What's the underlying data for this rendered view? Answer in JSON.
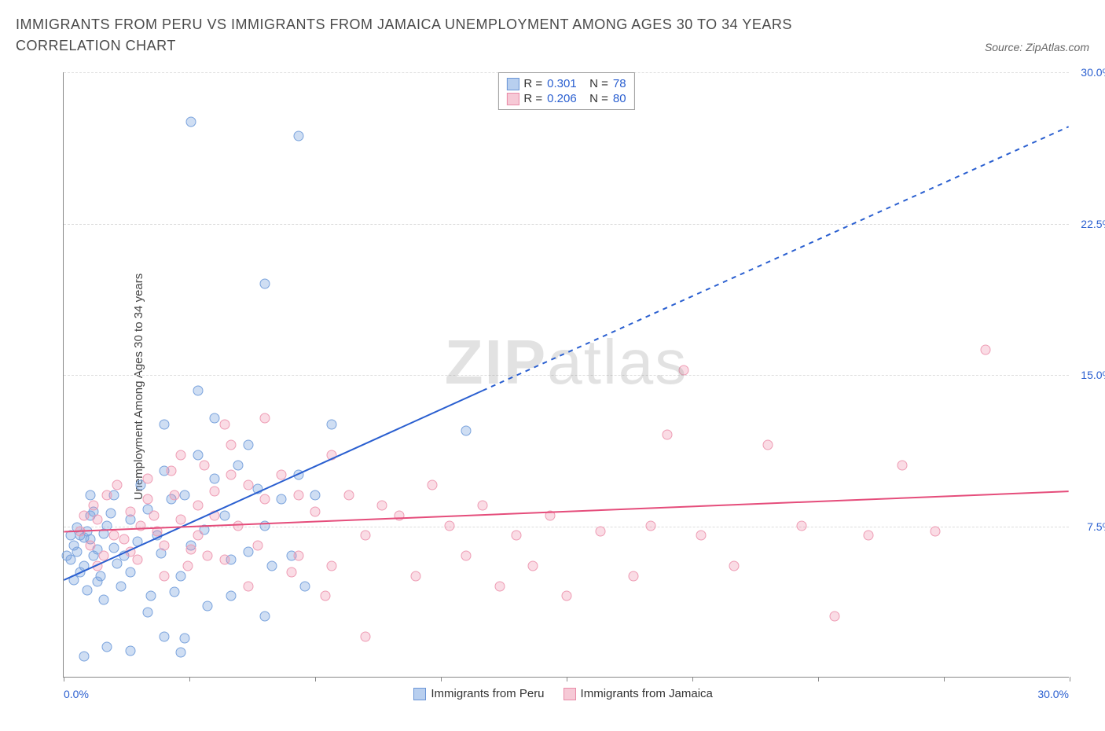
{
  "title": "IMMIGRANTS FROM PERU VS IMMIGRANTS FROM JAMAICA UNEMPLOYMENT AMONG AGES 30 TO 34 YEARS CORRELATION CHART",
  "source_label": "Source: ZipAtlas.com",
  "y_axis_label": "Unemployment Among Ages 30 to 34 years",
  "watermark_bold": "ZIP",
  "watermark_light": "atlas",
  "chart": {
    "type": "scatter",
    "xlim": [
      0,
      30
    ],
    "ylim": [
      0,
      30
    ],
    "x_ticks": [
      0,
      3.75,
      7.5,
      11.25,
      15,
      18.75,
      22.5,
      26.25,
      30
    ],
    "x_tick_labels": {
      "first": "0.0%",
      "last": "30.0%"
    },
    "y_grid": [
      7.5,
      15,
      22.5,
      30
    ],
    "y_grid_labels": [
      "7.5%",
      "15.0%",
      "22.5%",
      "30.0%"
    ],
    "grid_color": "#dddddd",
    "axis_color": "#888888",
    "background_color": "#ffffff",
    "axis_label_color": "#3a66c4",
    "marker_radius": 6.5,
    "series": [
      {
        "name": "Immigrants from Peru",
        "label": "Immigrants from Peru",
        "fill": "rgba(118,160,220,0.35)",
        "stroke": "#7aa3dd",
        "swatch_fill": "#b8cfef",
        "swatch_border": "#6b95d6",
        "R": "0.301",
        "N": "78",
        "trend": {
          "x1": 0,
          "y1": 4.8,
          "x2_solid": 12.5,
          "y2_solid": 14.2,
          "x2": 30,
          "y2": 27.3,
          "color": "#2a5fd0",
          "width": 2
        },
        "points": [
          [
            0.1,
            6.0
          ],
          [
            0.3,
            6.5
          ],
          [
            0.2,
            5.8
          ],
          [
            0.5,
            7.0
          ],
          [
            0.4,
            6.2
          ],
          [
            0.6,
            5.5
          ],
          [
            0.8,
            6.8
          ],
          [
            0.7,
            7.2
          ],
          [
            0.3,
            4.8
          ],
          [
            0.5,
            5.2
          ],
          [
            0.9,
            6.0
          ],
          [
            0.6,
            6.9
          ],
          [
            0.4,
            7.4
          ],
          [
            0.2,
            7.0
          ],
          [
            0.8,
            8.0
          ],
          [
            1.0,
            6.3
          ],
          [
            1.2,
            7.1
          ],
          [
            0.9,
            8.2
          ],
          [
            1.1,
            5.0
          ],
          [
            0.7,
            4.3
          ],
          [
            1.3,
            7.5
          ],
          [
            1.5,
            6.4
          ],
          [
            1.0,
            4.7
          ],
          [
            1.4,
            8.1
          ],
          [
            1.6,
            5.6
          ],
          [
            1.8,
            6.0
          ],
          [
            1.2,
            3.8
          ],
          [
            1.5,
            9.0
          ],
          [
            2.0,
            7.8
          ],
          [
            1.7,
            4.5
          ],
          [
            2.2,
            6.7
          ],
          [
            2.5,
            8.3
          ],
          [
            2.0,
            5.2
          ],
          [
            2.3,
            9.5
          ],
          [
            2.6,
            4.0
          ],
          [
            2.8,
            7.0
          ],
          [
            3.0,
            10.2
          ],
          [
            2.5,
            3.2
          ],
          [
            2.9,
            6.1
          ],
          [
            3.2,
            8.8
          ],
          [
            3.5,
            5.0
          ],
          [
            3.0,
            12.5
          ],
          [
            3.3,
            4.2
          ],
          [
            3.6,
            9.0
          ],
          [
            3.8,
            6.5
          ],
          [
            4.0,
            11.0
          ],
          [
            3.5,
            1.2
          ],
          [
            4.2,
            7.3
          ],
          [
            4.5,
            9.8
          ],
          [
            4.0,
            14.2
          ],
          [
            4.3,
            3.5
          ],
          [
            4.8,
            8.0
          ],
          [
            5.0,
            5.8
          ],
          [
            4.5,
            12.8
          ],
          [
            5.2,
            10.5
          ],
          [
            5.5,
            6.2
          ],
          [
            5.0,
            4.0
          ],
          [
            5.8,
            9.3
          ],
          [
            6.0,
            7.5
          ],
          [
            5.5,
            11.5
          ],
          [
            6.2,
            5.5
          ],
          [
            6.5,
            8.8
          ],
          [
            6.0,
            3.0
          ],
          [
            7.0,
            10.0
          ],
          [
            6.8,
            6.0
          ],
          [
            7.5,
            9.0
          ],
          [
            7.2,
            4.5
          ],
          [
            8.0,
            12.5
          ],
          [
            3.8,
            27.5
          ],
          [
            6.0,
            19.5
          ],
          [
            7.0,
            26.8
          ],
          [
            12.0,
            12.2
          ],
          [
            0.6,
            1.0
          ],
          [
            1.3,
            1.5
          ],
          [
            2.0,
            1.3
          ],
          [
            3.0,
            2.0
          ],
          [
            3.6,
            1.9
          ],
          [
            0.8,
            9.0
          ]
        ]
      },
      {
        "name": "Immigrants from Jamaica",
        "label": "Immigrants from Jamaica",
        "fill": "rgba(238,140,170,0.30)",
        "stroke": "#ee9cb4",
        "swatch_fill": "#f6c9d6",
        "swatch_border": "#e98ba8",
        "R": "0.206",
        "N": "80",
        "trend": {
          "x1": 0,
          "y1": 7.2,
          "x2_solid": 30,
          "y2_solid": 9.2,
          "x2": 30,
          "y2": 9.2,
          "color": "#e54d7b",
          "width": 2
        },
        "points": [
          [
            0.5,
            7.2
          ],
          [
            0.8,
            6.5
          ],
          [
            1.0,
            7.8
          ],
          [
            0.6,
            8.0
          ],
          [
            1.2,
            6.0
          ],
          [
            0.9,
            8.5
          ],
          [
            1.5,
            7.0
          ],
          [
            1.3,
            9.0
          ],
          [
            1.8,
            6.8
          ],
          [
            1.0,
            5.5
          ],
          [
            2.0,
            8.2
          ],
          [
            1.6,
            9.5
          ],
          [
            2.3,
            7.5
          ],
          [
            2.0,
            6.2
          ],
          [
            2.5,
            8.8
          ],
          [
            2.2,
            5.8
          ],
          [
            2.8,
            7.2
          ],
          [
            2.5,
            9.8
          ],
          [
            3.0,
            6.5
          ],
          [
            2.7,
            8.0
          ],
          [
            3.2,
            10.2
          ],
          [
            3.0,
            5.0
          ],
          [
            3.5,
            7.8
          ],
          [
            3.3,
            9.0
          ],
          [
            3.8,
            6.3
          ],
          [
            3.5,
            11.0
          ],
          [
            4.0,
            8.5
          ],
          [
            3.7,
            5.5
          ],
          [
            4.2,
            10.5
          ],
          [
            4.0,
            7.0
          ],
          [
            4.5,
            9.2
          ],
          [
            4.3,
            6.0
          ],
          [
            4.8,
            12.5
          ],
          [
            4.5,
            8.0
          ],
          [
            5.0,
            10.0
          ],
          [
            4.8,
            5.8
          ],
          [
            5.2,
            7.5
          ],
          [
            5.5,
            9.5
          ],
          [
            5.0,
            11.5
          ],
          [
            5.8,
            6.5
          ],
          [
            6.0,
            8.8
          ],
          [
            5.5,
            4.5
          ],
          [
            6.5,
            10.0
          ],
          [
            6.0,
            12.8
          ],
          [
            7.0,
            9.0
          ],
          [
            6.8,
            5.2
          ],
          [
            7.5,
            8.2
          ],
          [
            7.0,
            6.0
          ],
          [
            8.0,
            11.0
          ],
          [
            7.8,
            4.0
          ],
          [
            8.5,
            9.0
          ],
          [
            8.0,
            5.5
          ],
          [
            9.0,
            7.0
          ],
          [
            9.5,
            8.5
          ],
          [
            9.0,
            2.0
          ],
          [
            10.0,
            8.0
          ],
          [
            10.5,
            5.0
          ],
          [
            11.0,
            9.5
          ],
          [
            11.5,
            7.5
          ],
          [
            12.0,
            6.0
          ],
          [
            12.5,
            8.5
          ],
          [
            13.0,
            4.5
          ],
          [
            13.5,
            7.0
          ],
          [
            14.0,
            5.5
          ],
          [
            14.5,
            8.0
          ],
          [
            15.0,
            4.0
          ],
          [
            16.0,
            7.2
          ],
          [
            17.0,
            5.0
          ],
          [
            17.5,
            7.5
          ],
          [
            18.0,
            12.0
          ],
          [
            19.0,
            7.0
          ],
          [
            20.0,
            5.5
          ],
          [
            21.0,
            11.5
          ],
          [
            22.0,
            7.5
          ],
          [
            23.0,
            3.0
          ],
          [
            24.0,
            7.0
          ],
          [
            25.0,
            10.5
          ],
          [
            26.0,
            7.2
          ],
          [
            27.5,
            16.2
          ],
          [
            18.5,
            15.2
          ]
        ]
      }
    ]
  },
  "legend_top_labels": {
    "R_prefix": "R =",
    "N_prefix": "N ="
  },
  "colors": {
    "stat_value": "#2a5fd0",
    "stat_label": "#333333"
  }
}
